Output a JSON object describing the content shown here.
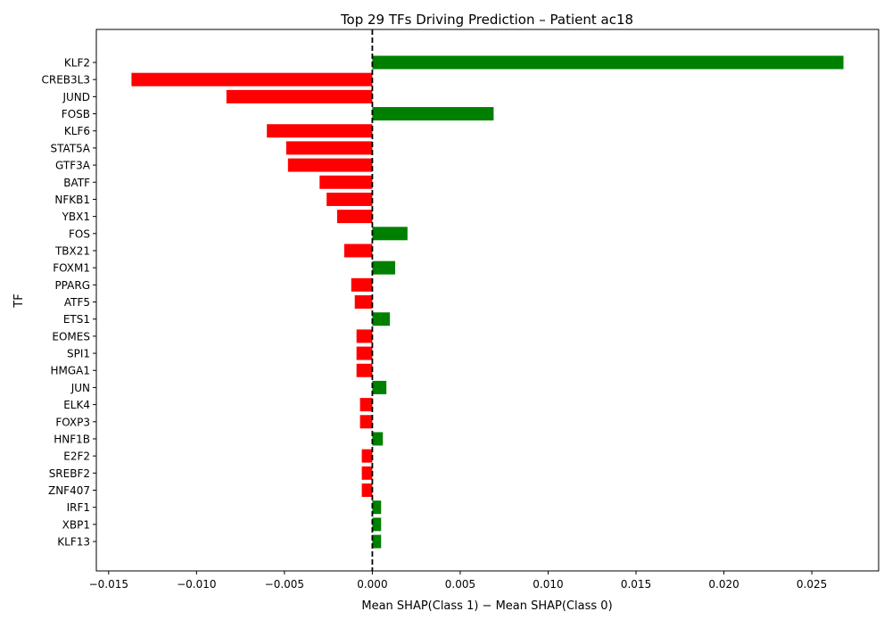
{
  "chart_data": {
    "type": "bar",
    "orientation": "horizontal",
    "title": "Top 29 TFs Driving Prediction – Patient ac18",
    "xlabel": "Mean SHAP(Class 1) − Mean SHAP(Class 0)",
    "ylabel": "TF",
    "xlim": [
      -0.0157,
      0.0288
    ],
    "xticks": [
      -0.015,
      -0.01,
      -0.005,
      0.0,
      0.005,
      0.01,
      0.015,
      0.02,
      0.025
    ],
    "xtick_labels": [
      "−0.015",
      "−0.010",
      "−0.005",
      "0.000",
      "0.005",
      "0.010",
      "0.015",
      "0.020",
      "0.025"
    ],
    "grid": false,
    "reference_line": {
      "x": 0,
      "style": "dashed",
      "color": "#000000"
    },
    "colors": {
      "positive": "#008000",
      "negative": "#ff0000"
    },
    "categories": [
      "KLF2",
      "CREB3L3",
      "JUND",
      "FOSB",
      "KLF6",
      "STAT5A",
      "GTF3A",
      "BATF",
      "NFKB1",
      "YBX1",
      "FOS",
      "TBX21",
      "FOXM1",
      "PPARG",
      "ATF5",
      "ETS1",
      "EOMES",
      "SPI1",
      "HMGA1",
      "JUN",
      "ELK4",
      "FOXP3",
      "HNF1B",
      "E2F2",
      "SREBF2",
      "ZNF407",
      "IRF1",
      "XBP1",
      "KLF13"
    ],
    "values": [
      0.0268,
      -0.0137,
      -0.0083,
      0.0069,
      -0.006,
      -0.0049,
      -0.0048,
      -0.003,
      -0.0026,
      -0.002,
      0.002,
      -0.0016,
      0.0013,
      -0.0012,
      -0.001,
      0.001,
      -0.0009,
      -0.0009,
      -0.0009,
      0.0008,
      -0.0007,
      -0.0007,
      0.0006,
      -0.0006,
      -0.0006,
      -0.0006,
      0.0005,
      0.0005,
      0.0005
    ]
  }
}
